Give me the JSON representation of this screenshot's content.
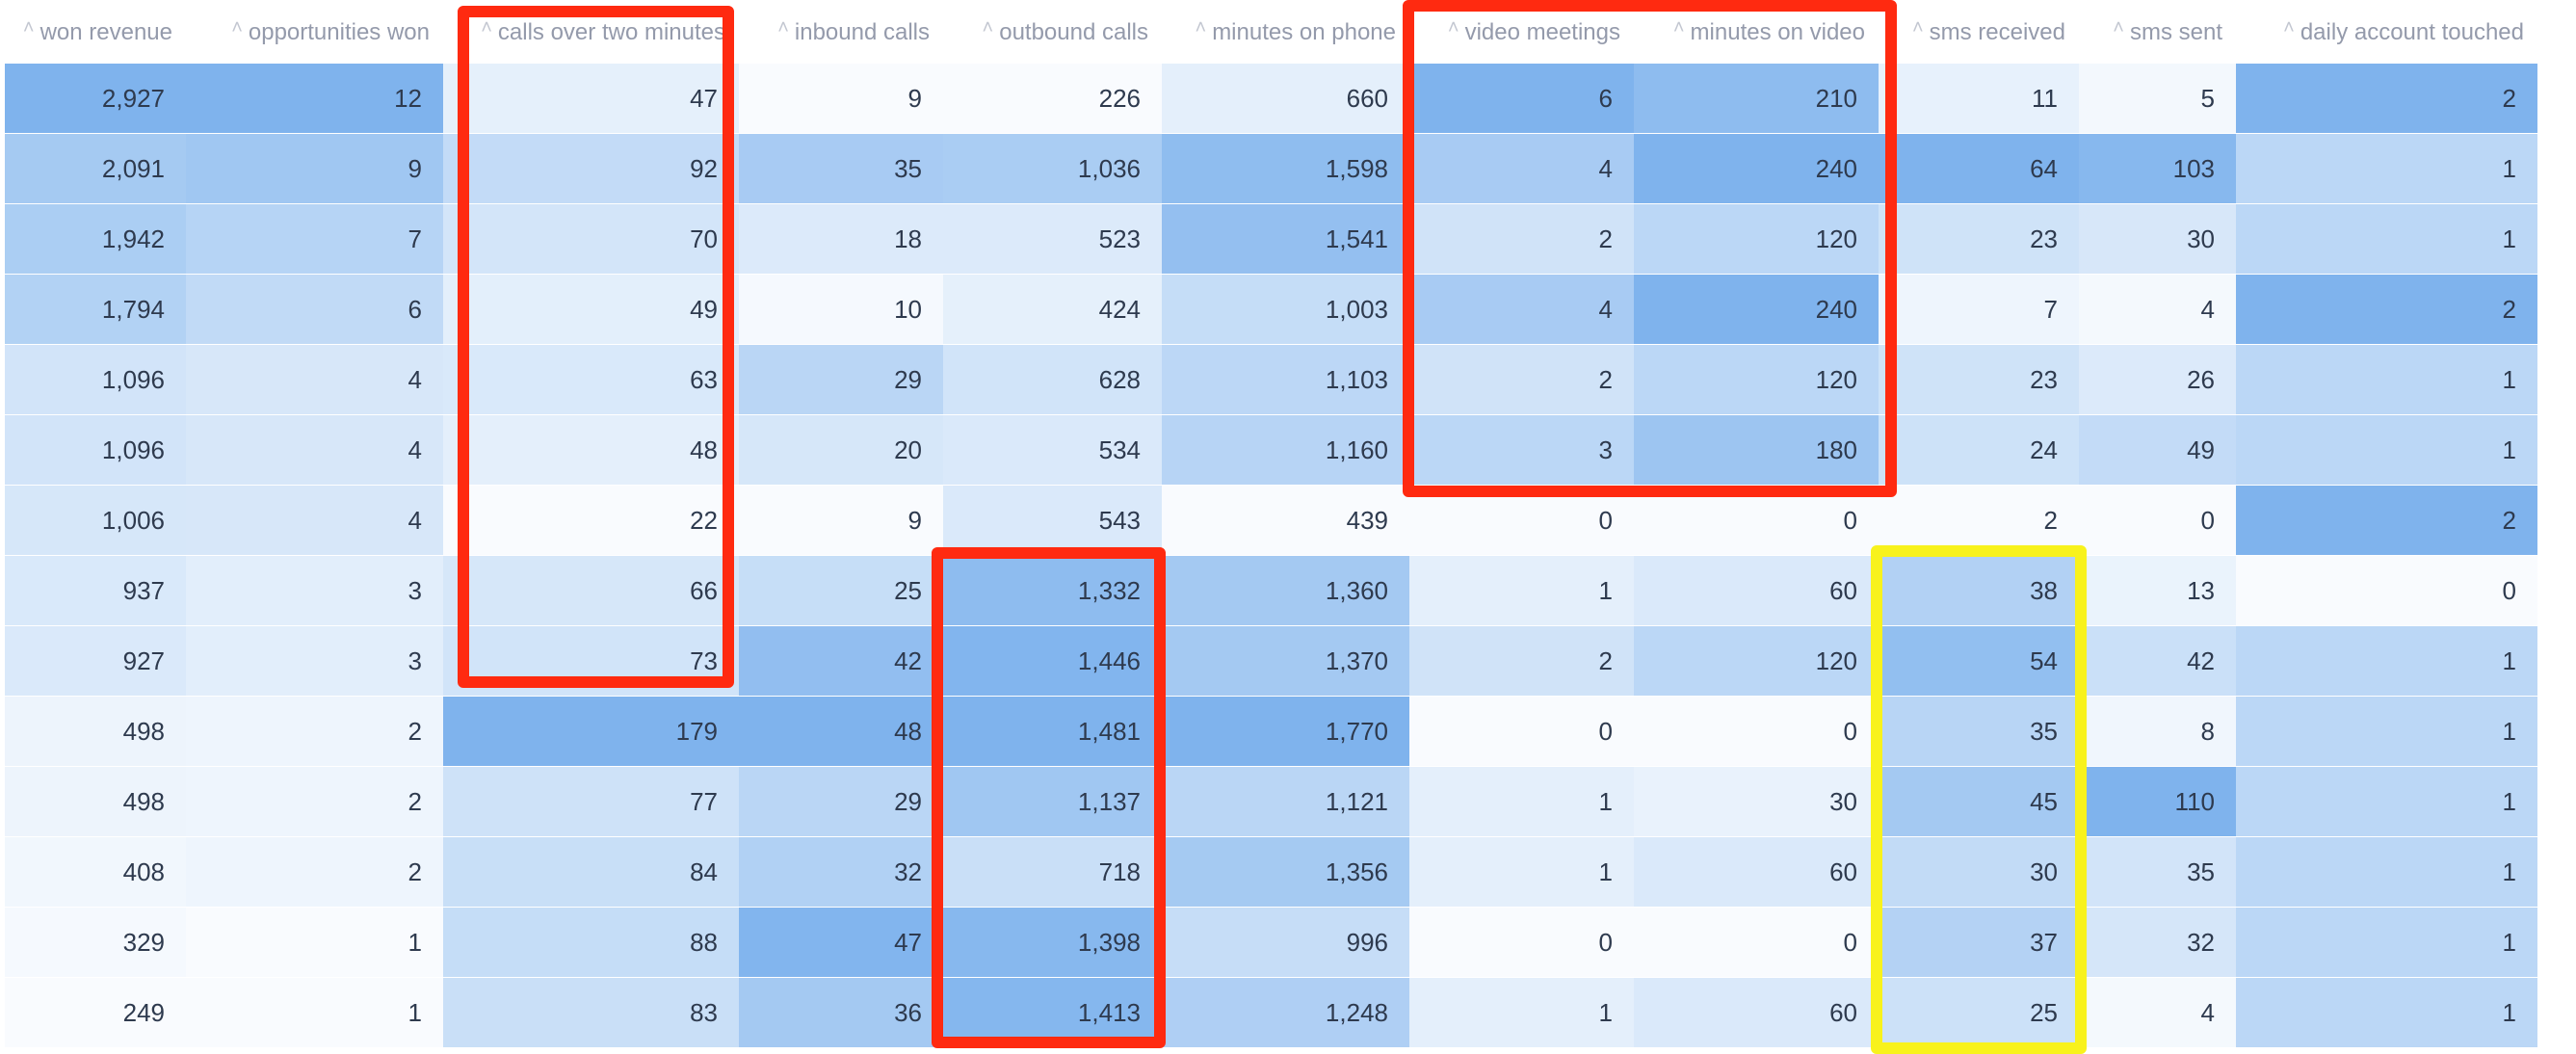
{
  "columns": [
    "won revenue",
    "opportunities won",
    "calls over two minutes",
    "inbound calls",
    "outbound calls",
    "minutes on phone",
    "video meetings",
    "minutes on video",
    "sms received",
    "sms sent",
    "daily account touched"
  ],
  "rows": [
    [
      "2,927",
      "12",
      "47",
      "9",
      "226",
      "660",
      "6",
      "210",
      "11",
      "5",
      "2"
    ],
    [
      "2,091",
      "9",
      "92",
      "35",
      "1,036",
      "1,598",
      "4",
      "240",
      "64",
      "103",
      "1"
    ],
    [
      "1,942",
      "7",
      "70",
      "18",
      "523",
      "1,541",
      "2",
      "120",
      "23",
      "30",
      "1"
    ],
    [
      "1,794",
      "6",
      "49",
      "10",
      "424",
      "1,003",
      "4",
      "240",
      "7",
      "4",
      "2"
    ],
    [
      "1,096",
      "4",
      "63",
      "29",
      "628",
      "1,103",
      "2",
      "120",
      "23",
      "26",
      "1"
    ],
    [
      "1,096",
      "4",
      "48",
      "20",
      "534",
      "1,160",
      "3",
      "180",
      "24",
      "49",
      "1"
    ],
    [
      "1,006",
      "4",
      "22",
      "9",
      "543",
      "439",
      "0",
      "0",
      "2",
      "0",
      "2"
    ],
    [
      "937",
      "3",
      "66",
      "25",
      "1,332",
      "1,360",
      "1",
      "60",
      "38",
      "13",
      "0"
    ],
    [
      "927",
      "3",
      "73",
      "42",
      "1,446",
      "1,370",
      "2",
      "120",
      "54",
      "42",
      "1"
    ],
    [
      "498",
      "2",
      "179",
      "48",
      "1,481",
      "1,770",
      "0",
      "0",
      "35",
      "8",
      "1"
    ],
    [
      "498",
      "2",
      "77",
      "29",
      "1,137",
      "1,121",
      "1",
      "30",
      "45",
      "110",
      "1"
    ],
    [
      "408",
      "2",
      "84",
      "32",
      "718",
      "1,356",
      "1",
      "60",
      "30",
      "35",
      "1"
    ],
    [
      "329",
      "1",
      "88",
      "47",
      "1,398",
      "996",
      "0",
      "0",
      "37",
      "32",
      "1"
    ],
    [
      "249",
      "1",
      "83",
      "36",
      "1,413",
      "1,248",
      "1",
      "60",
      "25",
      "4",
      "1"
    ]
  ],
  "heat_color": "#5b9ee8",
  "sort_icon": "caret-up-icon",
  "highlights": [
    {
      "color": "#ff2a10",
      "columns": "calls over two minutes",
      "rows": "1-9"
    },
    {
      "color": "#ff2a10",
      "columns": "outbound calls",
      "rows": "8-14"
    },
    {
      "color": "#ff2a10",
      "columns": "video meetings, minutes on video",
      "rows": "1-6"
    },
    {
      "color": "#f8f21c",
      "columns": "sms received",
      "rows": "8-14"
    }
  ]
}
